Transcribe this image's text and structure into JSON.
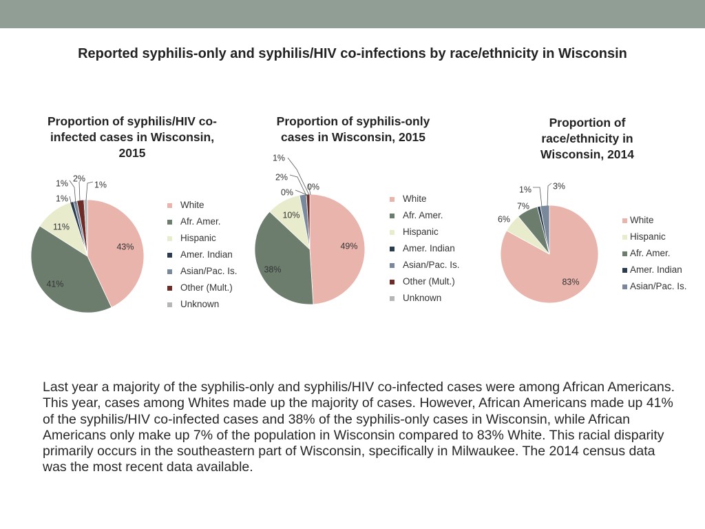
{
  "slide_title": "Reported syphilis-only and syphilis/HIV co-infections by race/ethnicity in Wisconsin",
  "colors": {
    "White": "#e9b4ab",
    "Afr. Amer.": "#6c7d6d",
    "Hispanic": "#e8ebcc",
    "Amer. Indian": "#2a3c4d",
    "Asian/Pac. Is.": "#7a889c",
    "Other (Mult.)": "#6e2c28",
    "Unknown": "#b5b7b6"
  },
  "chart_data": [
    {
      "type": "pie",
      "title": "Proportion of syphilis/HIV co-infected cases in Wisconsin, 2015",
      "categories": [
        "White",
        "Afr. Amer.",
        "Hispanic",
        "Amer. Indian",
        "Asian/Pac. Is.",
        "Other (Mult.)",
        "Unknown"
      ],
      "values": [
        43,
        41,
        11,
        1,
        1,
        2,
        1
      ],
      "labels": [
        "43%",
        "41%",
        "11%",
        "1%",
        "1%",
        "2%",
        "1%"
      ],
      "legend": [
        "White",
        "Afr. Amer.",
        "Hispanic",
        "Amer. Indian",
        "Asian/Pac. Is.",
        "Other (Mult.)",
        "Unknown"
      ],
      "legend_position": "right"
    },
    {
      "type": "pie",
      "title": "Proportion of syphilis-only cases in Wisconsin, 2015",
      "categories": [
        "White",
        "Afr. Amer.",
        "Hispanic",
        "Amer. Indian",
        "Asian/Pac. Is.",
        "Other (Mult.)",
        "Unknown"
      ],
      "values": [
        49,
        38,
        10,
        0,
        2,
        1,
        0
      ],
      "labels": [
        "49%",
        "38%",
        "10%",
        "0%",
        "2%",
        "1%",
        "0%"
      ],
      "legend": [
        "White",
        "Afr. Amer.",
        "Hispanic",
        "Amer. Indian",
        "Asian/Pac. Is.",
        "Other (Mult.)",
        "Unknown"
      ],
      "legend_position": "right"
    },
    {
      "type": "pie",
      "title": "Proportion of race/ethnicity in Wisconsin, 2014",
      "categories": [
        "White",
        "Hispanic",
        "Afr. Amer.",
        "Amer. Indian",
        "Asian/Pac. Is."
      ],
      "values": [
        83,
        6,
        7,
        1,
        3
      ],
      "labels": [
        "83%",
        "6%",
        "7%",
        "1%",
        "3%"
      ],
      "legend": [
        "White",
        "Hispanic",
        "Afr. Amer.",
        "Amer. Indian",
        "Asian/Pac. Is."
      ],
      "legend_position": "right"
    }
  ],
  "body_text": "Last year a majority of the syphilis-only and syphilis/HIV co-infected cases were among African Americans. This year, cases among Whites made up the majority of cases.  However, African Americans made up 41% of the syphilis/HIV co-infected cases and 38% of the syphilis-only cases in Wisconsin, while African Americans only make up 7% of the population in Wisconsin compared to 83% White. This racial disparity primarily occurs in the southeastern part of Wisconsin, specifically in Milwaukee. The 2014 census data was the most recent data available."
}
